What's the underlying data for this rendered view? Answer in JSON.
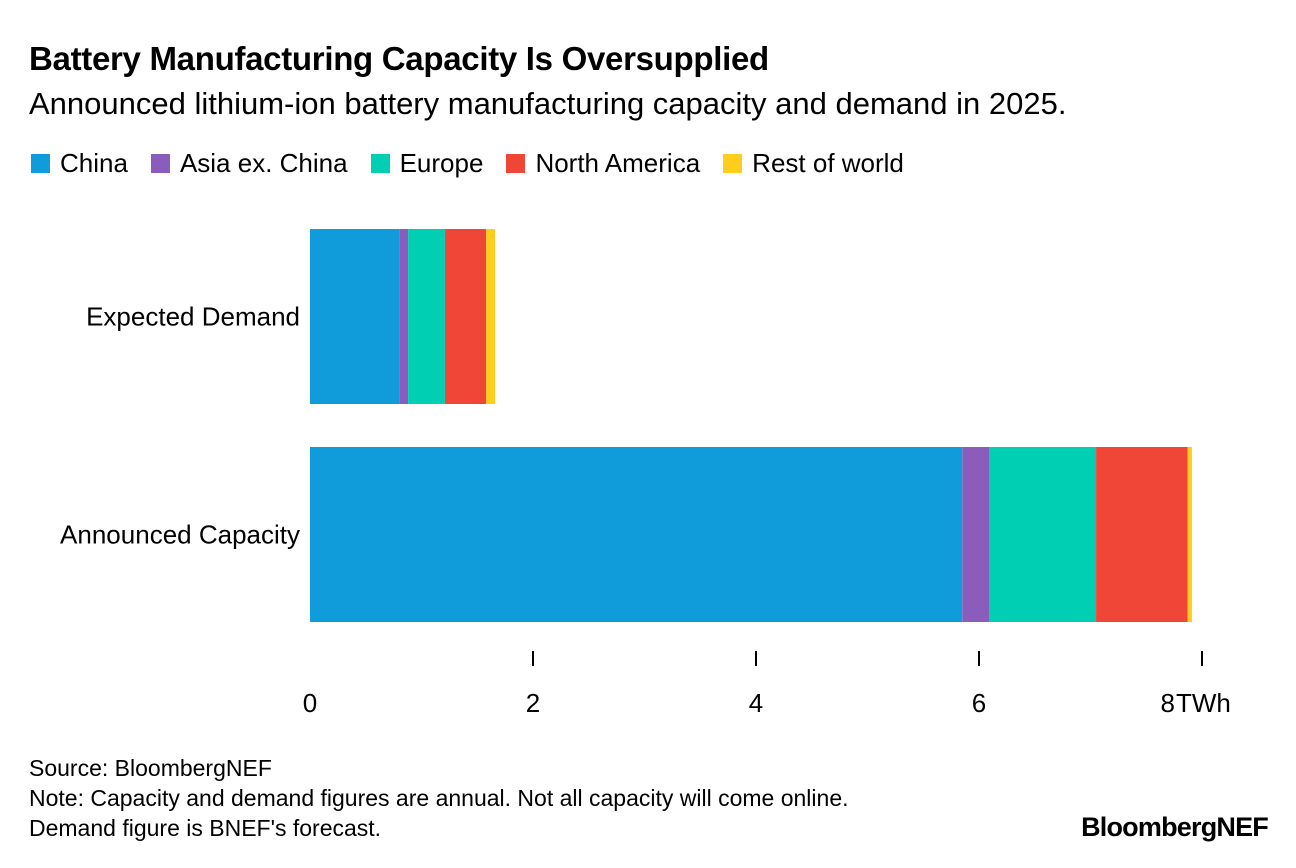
{
  "header": {
    "title": "Battery Manufacturing Capacity Is Oversupplied",
    "subtitle": "Announced lithium-ion battery manufacturing capacity and demand in 2025."
  },
  "footer": {
    "source": "Source: BloombergNEF",
    "note_line1": "Note: Capacity and demand figures are annual. Not all capacity will come online.",
    "note_line2": "Demand figure is BNEF's forecast.",
    "brand": "BloombergNEF"
  },
  "chart_data": {
    "type": "bar",
    "orientation": "horizontal",
    "stacked": true,
    "title": "Battery Manufacturing Capacity Is Oversupplied",
    "subtitle": "Announced lithium-ion battery manufacturing capacity and demand in 2025.",
    "categories": [
      "Expected Demand",
      "Announced Capacity"
    ],
    "series": [
      {
        "name": "China",
        "color": "#109cdb",
        "values": [
          0.8,
          5.85
        ]
      },
      {
        "name": "Asia ex. China",
        "color": "#8a5cbc",
        "values": [
          0.08,
          0.24
        ]
      },
      {
        "name": "Europe",
        "color": "#00cfb4",
        "values": [
          0.33,
          0.96
        ]
      },
      {
        "name": "North America",
        "color": "#ef4638",
        "values": [
          0.37,
          0.82
        ]
      },
      {
        "name": "Rest of world",
        "color": "#ffce1c",
        "values": [
          0.08,
          0.04
        ]
      }
    ],
    "xlim": [
      0,
      8
    ],
    "xticks": [
      0,
      2,
      4,
      6,
      8
    ],
    "xtick_labels": [
      "0",
      "2",
      "4",
      "6",
      "8"
    ],
    "x_unit": "TWh",
    "legend_position": "top"
  }
}
